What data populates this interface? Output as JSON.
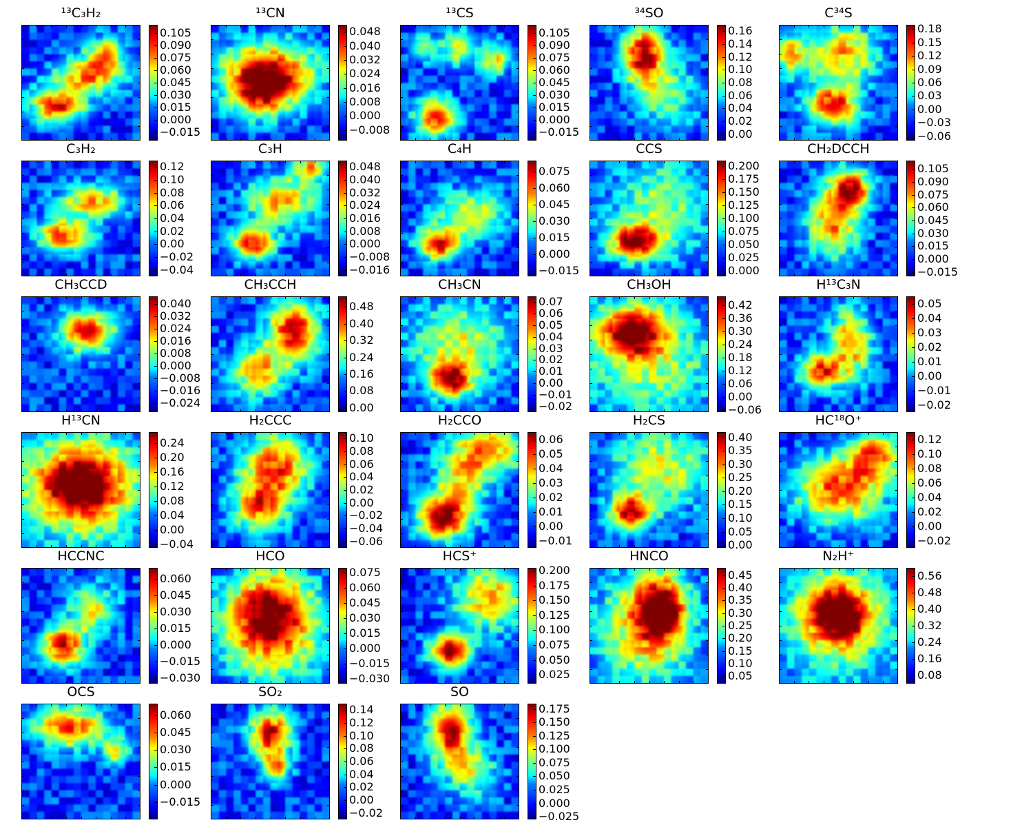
{
  "chart_data": [
    {
      "type": "heatmap",
      "title": "¹³C₃H₂",
      "colorbar": [
        "0.105",
        "0.090",
        "0.075",
        "0.060",
        "0.045",
        "0.030",
        "0.015",
        "0.000",
        "−0.015"
      ],
      "range": [
        -0.025,
        0.115
      ],
      "blobs": [
        [
          0.3,
          0.7,
          0.16,
          0.1,
          0.9
        ],
        [
          0.55,
          0.45,
          0.2,
          0.1,
          0.75
        ],
        [
          0.7,
          0.25,
          0.12,
          0.1,
          0.7
        ]
      ],
      "colormap": "jet"
    },
    {
      "type": "heatmap",
      "title": "¹³CN",
      "colorbar": [
        "0.048",
        "0.040",
        "0.032",
        "0.024",
        "0.016",
        "0.008",
        "0.000",
        "−0.008"
      ],
      "range": [
        -0.014,
        0.052
      ],
      "blobs": [
        [
          0.5,
          0.4,
          0.28,
          0.18,
          0.95
        ],
        [
          0.42,
          0.6,
          0.18,
          0.15,
          0.7
        ]
      ],
      "colormap": "jet"
    },
    {
      "type": "heatmap",
      "title": "¹³CS",
      "colorbar": [
        "0.105",
        "0.090",
        "0.075",
        "0.060",
        "0.045",
        "0.030",
        "0.015",
        "0.000",
        "−0.015"
      ],
      "range": [
        -0.025,
        0.115
      ],
      "blobs": [
        [
          0.3,
          0.8,
          0.12,
          0.12,
          0.9
        ],
        [
          0.5,
          0.2,
          0.1,
          0.1,
          0.6
        ],
        [
          0.8,
          0.3,
          0.08,
          0.1,
          0.6
        ],
        [
          0.2,
          0.2,
          0.08,
          0.08,
          0.5
        ]
      ],
      "colormap": "jet"
    },
    {
      "type": "heatmap",
      "title": "³⁴SO",
      "colorbar": [
        "0.16",
        "0.14",
        "0.12",
        "0.10",
        "0.08",
        "0.06",
        "0.04",
        "0.02",
        "0.00"
      ],
      "range": [
        -0.01,
        0.17
      ],
      "blobs": [
        [
          0.45,
          0.25,
          0.12,
          0.18,
          1.0
        ],
        [
          0.65,
          0.6,
          0.18,
          0.2,
          0.45
        ]
      ],
      "colormap": "jet"
    },
    {
      "type": "heatmap",
      "title": "C³⁴S",
      "colorbar": [
        "0.18",
        "0.15",
        "0.12",
        "0.09",
        "0.06",
        "0.03",
        "0.00",
        "−0.03",
        "−0.06"
      ],
      "range": [
        -0.07,
        0.19
      ],
      "blobs": [
        [
          0.45,
          0.7,
          0.15,
          0.12,
          0.95
        ],
        [
          0.55,
          0.25,
          0.2,
          0.18,
          0.7
        ],
        [
          0.1,
          0.25,
          0.1,
          0.12,
          0.65
        ]
      ],
      "colormap": "jet"
    },
    {
      "type": "heatmap",
      "title": "C₃H₂",
      "colorbar": [
        "0.12",
        "0.10",
        "0.08",
        "0.06",
        "0.04",
        "0.02",
        "0.00",
        "−0.02",
        "−0.04"
      ],
      "range": [
        -0.05,
        0.13
      ],
      "blobs": [
        [
          0.35,
          0.65,
          0.15,
          0.1,
          0.85
        ],
        [
          0.6,
          0.35,
          0.2,
          0.1,
          0.7
        ]
      ],
      "colormap": "jet"
    },
    {
      "type": "heatmap",
      "title": "C₃H",
      "colorbar": [
        "0.048",
        "0.040",
        "0.032",
        "0.024",
        "0.016",
        "0.008",
        "0.000",
        "−0.008",
        "−0.016"
      ],
      "range": [
        -0.02,
        0.052
      ],
      "blobs": [
        [
          0.35,
          0.72,
          0.12,
          0.1,
          0.95
        ],
        [
          0.6,
          0.35,
          0.2,
          0.15,
          0.7
        ],
        [
          0.85,
          0.05,
          0.1,
          0.08,
          0.65
        ]
      ],
      "colormap": "jet"
    },
    {
      "type": "heatmap",
      "title": "C₄H",
      "colorbar": [
        "0.075",
        "0.060",
        "0.045",
        "0.030",
        "0.015",
        "0.000",
        "−0.015"
      ],
      "range": [
        -0.02,
        0.085
      ],
      "blobs": [
        [
          0.32,
          0.72,
          0.12,
          0.1,
          0.95
        ],
        [
          0.6,
          0.45,
          0.2,
          0.15,
          0.55
        ]
      ],
      "colormap": "jet"
    },
    {
      "type": "heatmap",
      "title": "CCS",
      "colorbar": [
        "0.200",
        "0.175",
        "0.150",
        "0.125",
        "0.100",
        "0.075",
        "0.050",
        "0.025",
        "0.000"
      ],
      "range": [
        -0.01,
        0.21
      ],
      "blobs": [
        [
          0.38,
          0.7,
          0.15,
          0.1,
          1.0
        ],
        [
          0.6,
          0.4,
          0.3,
          0.3,
          0.45
        ]
      ],
      "colormap": "jet"
    },
    {
      "type": "heatmap",
      "title": "CH₂DCCH",
      "colorbar": [
        "0.105",
        "0.090",
        "0.075",
        "0.060",
        "0.045",
        "0.030",
        "0.015",
        "0.000",
        "−0.015"
      ],
      "range": [
        -0.02,
        0.115
      ],
      "blobs": [
        [
          0.6,
          0.25,
          0.12,
          0.12,
          1.0
        ],
        [
          0.45,
          0.55,
          0.15,
          0.2,
          0.75
        ]
      ],
      "colormap": "jet"
    },
    {
      "type": "heatmap",
      "title": "CH₃CCD",
      "colorbar": [
        "0.040",
        "0.032",
        "0.024",
        "0.016",
        "0.008",
        "0.000",
        "−0.008",
        "−0.016",
        "−0.024"
      ],
      "range": [
        -0.03,
        0.045
      ],
      "blobs": [
        [
          0.55,
          0.3,
          0.16,
          0.12,
          1.0
        ]
      ],
      "colormap": "jet"
    },
    {
      "type": "heatmap",
      "title": "CH₃CCH",
      "colorbar": [
        "0.48",
        "0.40",
        "0.32",
        "0.24",
        "0.16",
        "0.08",
        "0.00"
      ],
      "range": [
        -0.02,
        0.53
      ],
      "blobs": [
        [
          0.7,
          0.3,
          0.15,
          0.18,
          1.0
        ],
        [
          0.4,
          0.65,
          0.15,
          0.15,
          0.7
        ]
      ],
      "colormap": "jet"
    },
    {
      "type": "heatmap",
      "title": "CH₃CN",
      "colorbar": [
        "0.07",
        "0.06",
        "0.05",
        "0.04",
        "0.03",
        "0.02",
        "0.01",
        "0.00",
        "−0.01",
        "−0.02"
      ],
      "range": [
        -0.025,
        0.075
      ],
      "blobs": [
        [
          0.42,
          0.72,
          0.12,
          0.1,
          1.0
        ],
        [
          0.5,
          0.4,
          0.3,
          0.25,
          0.55
        ]
      ],
      "colormap": "jet"
    },
    {
      "type": "heatmap",
      "title": "CH₃OH",
      "colorbar": [
        "0.42",
        "0.36",
        "0.30",
        "0.24",
        "0.18",
        "0.12",
        "0.06",
        "0.00",
        "−0.06"
      ],
      "range": [
        -0.07,
        0.46
      ],
      "blobs": [
        [
          0.35,
          0.3,
          0.18,
          0.15,
          1.0
        ],
        [
          0.5,
          0.55,
          0.4,
          0.35,
          0.5
        ]
      ],
      "colormap": "jet"
    },
    {
      "type": "heatmap",
      "title": "H¹³C₃N",
      "colorbar": [
        "0.05",
        "0.04",
        "0.03",
        "0.02",
        "0.01",
        "0.00",
        "−0.01",
        "−0.02"
      ],
      "range": [
        -0.025,
        0.055
      ],
      "blobs": [
        [
          0.35,
          0.65,
          0.12,
          0.1,
          0.9
        ],
        [
          0.6,
          0.4,
          0.12,
          0.22,
          0.75
        ]
      ],
      "colormap": "jet"
    },
    {
      "type": "heatmap",
      "title": "H¹³CN",
      "colorbar": [
        "0.24",
        "0.20",
        "0.16",
        "0.12",
        "0.08",
        "0.04",
        "0.00",
        "−0.04"
      ],
      "range": [
        -0.05,
        0.27
      ],
      "blobs": [
        [
          0.5,
          0.45,
          0.25,
          0.22,
          1.0
        ],
        [
          0.5,
          0.5,
          0.45,
          0.4,
          0.4
        ]
      ],
      "colormap": "jet"
    },
    {
      "type": "heatmap",
      "title": "H₂CCC",
      "colorbar": [
        "0.10",
        "0.08",
        "0.06",
        "0.04",
        "0.02",
        "0.00",
        "−0.02",
        "−0.04",
        "−0.06"
      ],
      "range": [
        -0.07,
        0.11
      ],
      "blobs": [
        [
          0.55,
          0.3,
          0.2,
          0.2,
          0.85
        ],
        [
          0.4,
          0.65,
          0.15,
          0.15,
          0.75
        ]
      ],
      "colormap": "jet"
    },
    {
      "type": "heatmap",
      "title": "H₂CCO",
      "colorbar": [
        "0.06",
        "0.05",
        "0.04",
        "0.03",
        "0.02",
        "0.01",
        "0.00",
        "−0.01"
      ],
      "range": [
        -0.015,
        0.065
      ],
      "blobs": [
        [
          0.35,
          0.75,
          0.15,
          0.12,
          1.0
        ],
        [
          0.75,
          0.15,
          0.2,
          0.15,
          0.75
        ],
        [
          0.5,
          0.45,
          0.15,
          0.2,
          0.6
        ]
      ],
      "colormap": "jet"
    },
    {
      "type": "heatmap",
      "title": "H₂CS",
      "colorbar": [
        "0.40",
        "0.35",
        "0.30",
        "0.25",
        "0.20",
        "0.15",
        "0.10",
        "0.05",
        "0.00"
      ],
      "range": [
        -0.01,
        0.42
      ],
      "blobs": [
        [
          0.35,
          0.7,
          0.12,
          0.1,
          1.0
        ],
        [
          0.6,
          0.3,
          0.3,
          0.25,
          0.55
        ]
      ],
      "colormap": "jet"
    },
    {
      "type": "heatmap",
      "title": "HC¹⁸O⁺",
      "colorbar": [
        "0.12",
        "0.10",
        "0.08",
        "0.06",
        "0.04",
        "0.02",
        "0.00",
        "−0.02"
      ],
      "range": [
        -0.03,
        0.13
      ],
      "blobs": [
        [
          0.5,
          0.5,
          0.25,
          0.2,
          0.85
        ],
        [
          0.8,
          0.2,
          0.15,
          0.15,
          0.75
        ]
      ],
      "colormap": "jet"
    },
    {
      "type": "heatmap",
      "title": "HCCNC",
      "colorbar": [
        "0.060",
        "0.045",
        "0.030",
        "0.015",
        "0.000",
        "−0.015",
        "−0.030"
      ],
      "range": [
        -0.035,
        0.07
      ],
      "blobs": [
        [
          0.35,
          0.68,
          0.12,
          0.12,
          1.0
        ],
        [
          0.6,
          0.35,
          0.15,
          0.15,
          0.55
        ]
      ],
      "colormap": "jet"
    },
    {
      "type": "heatmap",
      "title": "HCO",
      "colorbar": [
        "0.075",
        "0.060",
        "0.045",
        "0.030",
        "0.015",
        "0.000",
        "−0.015",
        "−0.030"
      ],
      "range": [
        -0.035,
        0.08
      ],
      "blobs": [
        [
          0.5,
          0.35,
          0.25,
          0.25,
          0.8
        ],
        [
          0.5,
          0.6,
          0.3,
          0.3,
          0.55
        ]
      ],
      "colormap": "jet"
    },
    {
      "type": "heatmap",
      "title": "HCS⁺",
      "colorbar": [
        "0.200",
        "0.175",
        "0.150",
        "0.125",
        "0.100",
        "0.075",
        "0.050",
        "0.025"
      ],
      "range": [
        0.01,
        0.205
      ],
      "blobs": [
        [
          0.42,
          0.72,
          0.12,
          0.1,
          1.0
        ],
        [
          0.75,
          0.25,
          0.2,
          0.2,
          0.7
        ]
      ],
      "colormap": "jet"
    },
    {
      "type": "heatmap",
      "title": "HNCO",
      "colorbar": [
        "0.45",
        "0.40",
        "0.35",
        "0.30",
        "0.25",
        "0.20",
        "0.15",
        "0.10",
        "0.05"
      ],
      "range": [
        0.02,
        0.48
      ],
      "blobs": [
        [
          0.6,
          0.35,
          0.15,
          0.2,
          1.0
        ],
        [
          0.45,
          0.55,
          0.28,
          0.35,
          0.6
        ]
      ],
      "colormap": "jet"
    },
    {
      "type": "heatmap",
      "title": "N₂H⁺",
      "colorbar": [
        "0.56",
        "0.48",
        "0.40",
        "0.32",
        "0.24",
        "0.16",
        "0.08"
      ],
      "range": [
        0.04,
        0.6
      ],
      "blobs": [
        [
          0.5,
          0.4,
          0.18,
          0.18,
          1.0
        ],
        [
          0.5,
          0.45,
          0.4,
          0.4,
          0.45
        ]
      ],
      "colormap": "jet"
    },
    {
      "type": "heatmap",
      "title": "OCS",
      "colorbar": [
        "0.060",
        "0.045",
        "0.030",
        "0.015",
        "0.000",
        "−0.015"
      ],
      "range": [
        -0.03,
        0.07
      ],
      "blobs": [
        [
          0.4,
          0.2,
          0.2,
          0.12,
          0.9
        ],
        [
          0.8,
          0.4,
          0.08,
          0.08,
          0.6
        ]
      ],
      "colormap": "jet"
    },
    {
      "type": "heatmap",
      "title": "SO₂",
      "colorbar": [
        "0.14",
        "0.12",
        "0.10",
        "0.08",
        "0.06",
        "0.04",
        "0.02",
        "0.00",
        "−0.02"
      ],
      "range": [
        -0.03,
        0.15
      ],
      "blobs": [
        [
          0.5,
          0.25,
          0.12,
          0.14,
          1.0
        ],
        [
          0.55,
          0.55,
          0.08,
          0.1,
          0.65
        ]
      ],
      "colormap": "jet"
    },
    {
      "type": "heatmap",
      "title": "SO",
      "colorbar": [
        "0.175",
        "0.150",
        "0.125",
        "0.100",
        "0.075",
        "0.050",
        "0.025",
        "0.000",
        "−0.025"
      ],
      "range": [
        -0.03,
        0.185
      ],
      "blobs": [
        [
          0.42,
          0.25,
          0.12,
          0.18,
          1.0
        ],
        [
          0.6,
          0.6,
          0.15,
          0.15,
          0.5
        ]
      ],
      "colormap": "jet"
    }
  ]
}
